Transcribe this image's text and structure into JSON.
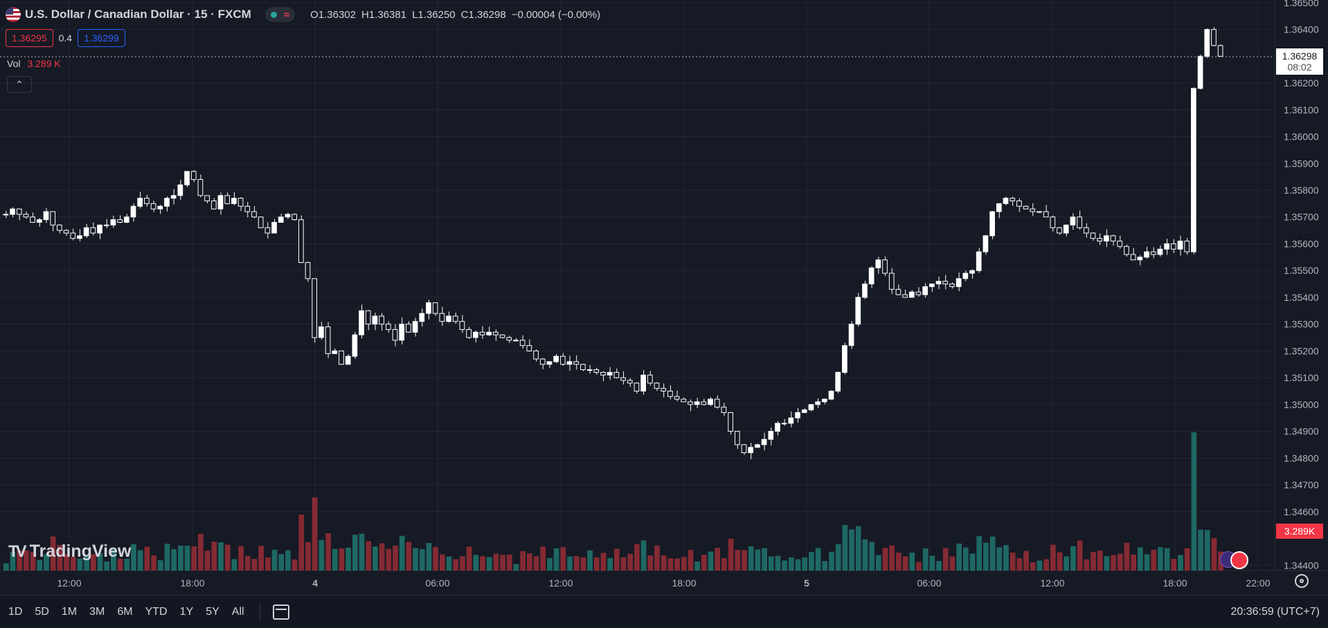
{
  "header": {
    "symbol_title": "U.S. Dollar / Canadian Dollar · 15 · FXCM",
    "ohlc": [
      {
        "key": "O",
        "value": "1.36302"
      },
      {
        "key": "H",
        "value": "1.36381"
      },
      {
        "key": "L",
        "value": "1.36250"
      },
      {
        "key": "C",
        "value": "1.36298"
      }
    ],
    "change": "−0.00004 (−0.00%)"
  },
  "quote": {
    "bid": "1.36295",
    "spread": "0.4",
    "ask": "1.36299"
  },
  "volume_legend": {
    "label": "Vol",
    "value": "3.289 K"
  },
  "logo": "TradingView",
  "price_axis": {
    "ticks": [
      "1.36500",
      "1.36400",
      "1.36200",
      "1.36100",
      "1.36000",
      "1.35900",
      "1.35800",
      "1.35700",
      "1.35600",
      "1.35500",
      "1.35400",
      "1.35300",
      "1.35200",
      "1.35100",
      "1.35000",
      "1.34900",
      "1.34800",
      "1.34700",
      "1.34600",
      "1.34400"
    ],
    "current_price": "1.36298",
    "countdown": "08:02",
    "volume_label": "3.289K"
  },
  "time_axis": [
    "12:00",
    "18:00",
    "4",
    "06:00",
    "12:00",
    "18:00",
    "5",
    "06:00",
    "12:00",
    "18:00",
    "22:00"
  ],
  "bottom_bar": {
    "ranges": [
      "1D",
      "5D",
      "1M",
      "3M",
      "6M",
      "YTD",
      "1Y",
      "5Y",
      "All"
    ],
    "clock": "20:36:59 (UTC+7)"
  },
  "colors": {
    "up": "#26a69a",
    "down": "#f23645",
    "candle": "#ffffff",
    "background": "#161a25",
    "grid": "#232735"
  },
  "chart_data": {
    "type": "candlestick",
    "title": "U.S. Dollar / Canadian Dollar · 15 · FXCM",
    "ylim": [
      1.3438,
      1.3651
    ],
    "close_path": [
      1.3571,
      1.3573,
      1.3571,
      1.357,
      1.3568,
      1.3569,
      1.3572,
      1.3567,
      1.3565,
      1.3564,
      1.3562,
      1.3563,
      1.3566,
      1.3564,
      1.3567,
      1.3567,
      1.3569,
      1.3568,
      1.357,
      1.3574,
      1.3577,
      1.3575,
      1.3573,
      1.3574,
      1.3577,
      1.3578,
      1.3582,
      1.3587,
      1.3584,
      1.3578,
      1.3576,
      1.3573,
      1.3578,
      1.3575,
      1.3577,
      1.3574,
      1.3572,
      1.357,
      1.3566,
      1.3564,
      1.3568,
      1.357,
      1.3571,
      1.3569,
      1.3553,
      1.3547,
      1.3525,
      1.3529,
      1.3519,
      1.352,
      1.3515,
      1.3518,
      1.3526,
      1.3535,
      1.353,
      1.3533,
      1.353,
      1.3528,
      1.3524,
      1.353,
      1.3527,
      1.3531,
      1.3534,
      1.3538,
      1.3534,
      1.3531,
      1.3533,
      1.3531,
      1.3528,
      1.3525,
      1.3527,
      1.3526,
      1.3527,
      1.3526,
      1.3525,
      1.3524,
      1.3524,
      1.3522,
      1.352,
      1.3517,
      1.3515,
      1.3516,
      1.3518,
      1.3515,
      1.3516,
      1.3515,
      1.3513,
      1.3513,
      1.3512,
      1.3511,
      1.3512,
      1.351,
      1.3509,
      1.3508,
      1.3505,
      1.3511,
      1.3508,
      1.3506,
      1.3505,
      1.3503,
      1.3502,
      1.3501,
      1.35,
      1.3501,
      1.35,
      1.3502,
      1.3499,
      1.3497,
      1.349,
      1.3485,
      1.3482,
      1.3484,
      1.3485,
      1.3487,
      1.349,
      1.3493,
      1.3493,
      1.3495,
      1.3497,
      1.3498,
      1.35,
      1.3501,
      1.3502,
      1.3505,
      1.3512,
      1.3522,
      1.353,
      1.354,
      1.3545,
      1.3551,
      1.3554,
      1.3549,
      1.3543,
      1.3541,
      1.354,
      1.3542,
      1.3541,
      1.3544,
      1.3545,
      1.3546,
      1.3545,
      1.3544,
      1.3547,
      1.3549,
      1.355,
      1.3557,
      1.3563,
      1.3572,
      1.3575,
      1.3577,
      1.3576,
      1.3574,
      1.3573,
      1.3572,
      1.3572,
      1.357,
      1.3566,
      1.3564,
      1.3567,
      1.357,
      1.3566,
      1.3564,
      1.3562,
      1.3561,
      1.3563,
      1.3561,
      1.3559,
      1.3556,
      1.3554,
      1.3555,
      1.3557,
      1.3556,
      1.3558,
      1.356,
      1.3558,
      1.3561,
      1.3557,
      1.3618,
      1.363,
      1.364,
      1.3634,
      1.363
    ]
  }
}
